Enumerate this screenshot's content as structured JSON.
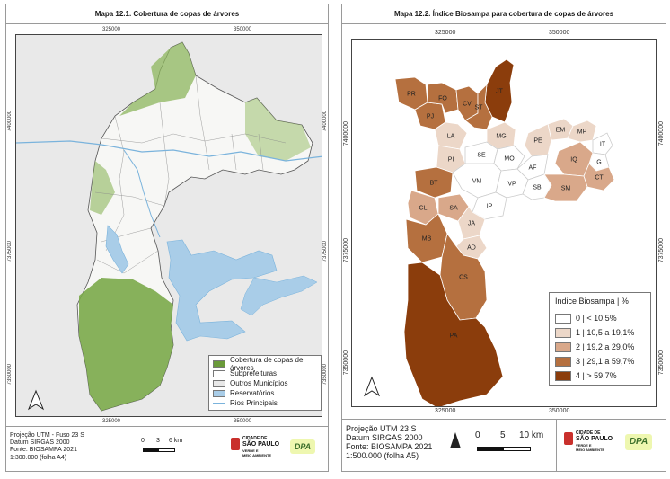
{
  "left_map": {
    "title": "Mapa 12.1. Cobertura de copas de árvores",
    "top_ticks": [
      "325000",
      "350000"
    ],
    "bottom_ticks": [
      "325000",
      "350000"
    ],
    "left_ticks": [
      "7400000",
      "7375000",
      "7350000"
    ],
    "right_ticks": [
      "7400000",
      "7375000",
      "7350000"
    ],
    "legend": [
      {
        "label": "Cobertura de copas de árvores",
        "color": "#6a9a3a"
      },
      {
        "label": "Subprefeituras",
        "color": "#ffffff"
      },
      {
        "label": "Outros Municípios",
        "color": "#e8e8e8"
      },
      {
        "label": "Reservatórios",
        "color": "#a9cde8"
      },
      {
        "label": "Rios Principais",
        "color": "#7ab3dc"
      }
    ],
    "meta": [
      "Projeção UTM - Fuso 23 S",
      "Datum SIRGAS 2000",
      "Fonte: BIOSAMPA 2021",
      "1:300.000  (folha A4)"
    ],
    "scale_labels": [
      "0",
      "3",
      "6 km"
    ]
  },
  "right_map": {
    "title": "Mapa 12.2. Índice Biosampa para cobertura de copas de árvores",
    "top_ticks": [
      "325000",
      "350000"
    ],
    "bottom_ticks": [
      "325000",
      "350000"
    ],
    "left_ticks": [
      "7400000",
      "7375000",
      "7350000"
    ],
    "right_ticks": [
      "7400000",
      "7375000",
      "7350000"
    ],
    "legend_title": "Índice Biosampa | %",
    "legend": [
      {
        "label": "0 | < 10,5%",
        "color": "#ffffff"
      },
      {
        "label": "1 | 10,5 a 19,1%",
        "color": "#ecd7c8"
      },
      {
        "label": "2 | 19,2 a 29,0%",
        "color": "#d9a88a"
      },
      {
        "label": "3 | 29,1 a 59,7%",
        "color": "#b5703f"
      },
      {
        "label": "4 | > 59,7%",
        "color": "#8b3d0c"
      }
    ],
    "regions": [
      "PR",
      "PJ",
      "FO",
      "CV",
      "JT",
      "ST",
      "LA",
      "MG",
      "EM",
      "MP",
      "IT",
      "PE",
      "G",
      "PI",
      "SE",
      "MO",
      "AF",
      "IQ",
      "CT",
      "BT",
      "VM",
      "VP",
      "SB",
      "SM",
      "CL",
      "SA",
      "IP",
      "JA",
      "MB",
      "AD",
      "CS",
      "PA"
    ],
    "meta": [
      "Projeção UTM 23 S",
      "Datum SIRGAS 2000",
      "Fonte: BIOSAMPA 2021",
      "1:500.000 (folha A5)"
    ],
    "scale_labels": [
      "0",
      "5",
      "10 km"
    ]
  },
  "logo": {
    "line1": "CIDADE DE",
    "line2": "SÃO PAULO",
    "line3": "VERDE E",
    "line4": "MEIO AMBIENTE",
    "dpa": "DPA"
  }
}
